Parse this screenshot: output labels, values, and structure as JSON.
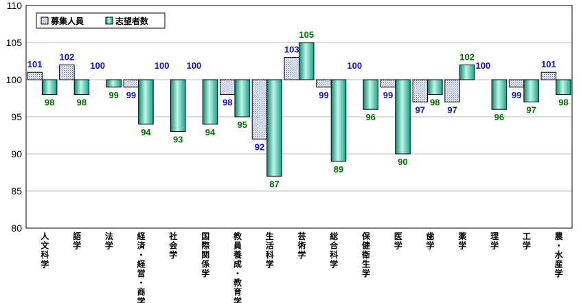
{
  "chart_data": {
    "type": "bar",
    "categories": [
      "人文科学",
      "語学",
      "法学",
      "経済・経営・商学",
      "社会学",
      "国際関係学",
      "教員養成・教育学",
      "生活科学",
      "芸術学",
      "総合科学",
      "保健衛生学",
      "医学",
      "歯学",
      "薬学",
      "理学",
      "工学",
      "農・水産学"
    ],
    "series": [
      {
        "name": "募集人員",
        "values": [
          101,
          102,
          100,
          99,
          100,
          100,
          98,
          92,
          103,
          99,
          100,
          99,
          97,
          97,
          100,
          99,
          101
        ]
      },
      {
        "name": "志望者数",
        "values": [
          98,
          98,
          99,
          94,
          93,
          94,
          95,
          87,
          105,
          89,
          96,
          90,
          98,
          102,
          96,
          97,
          98
        ]
      }
    ],
    "value_labels": [
      [
        "101",
        "102",
        "100",
        "99",
        "100",
        "100",
        "98",
        "92",
        "103",
        "99",
        "100",
        "99",
        "97",
        "97",
        "100",
        "99",
        "101"
      ],
      [
        "98",
        "98",
        "99",
        "94",
        "93",
        "94",
        "95",
        "87",
        "105",
        "89",
        "96",
        "90",
        "98",
        "102",
        "96",
        "97",
        "98"
      ]
    ],
    "baseline": 100,
    "ylim": [
      80,
      110
    ],
    "yticks": [
      "80",
      "85",
      "90",
      "95",
      "100",
      "105",
      "110"
    ],
    "grid": true,
    "legend_position": "top-left",
    "colors": {
      "series1_fill": "#e8ecf8",
      "series1_dots": "#5a6a9a",
      "series2_fill": "#2fd9b4",
      "series2_highlight": "#bff6e8",
      "label_series1": "#1010c8",
      "label_series2": "#007000",
      "grid": "#bbbbbb"
    },
    "title": "",
    "xlabel": "",
    "ylabel": ""
  }
}
